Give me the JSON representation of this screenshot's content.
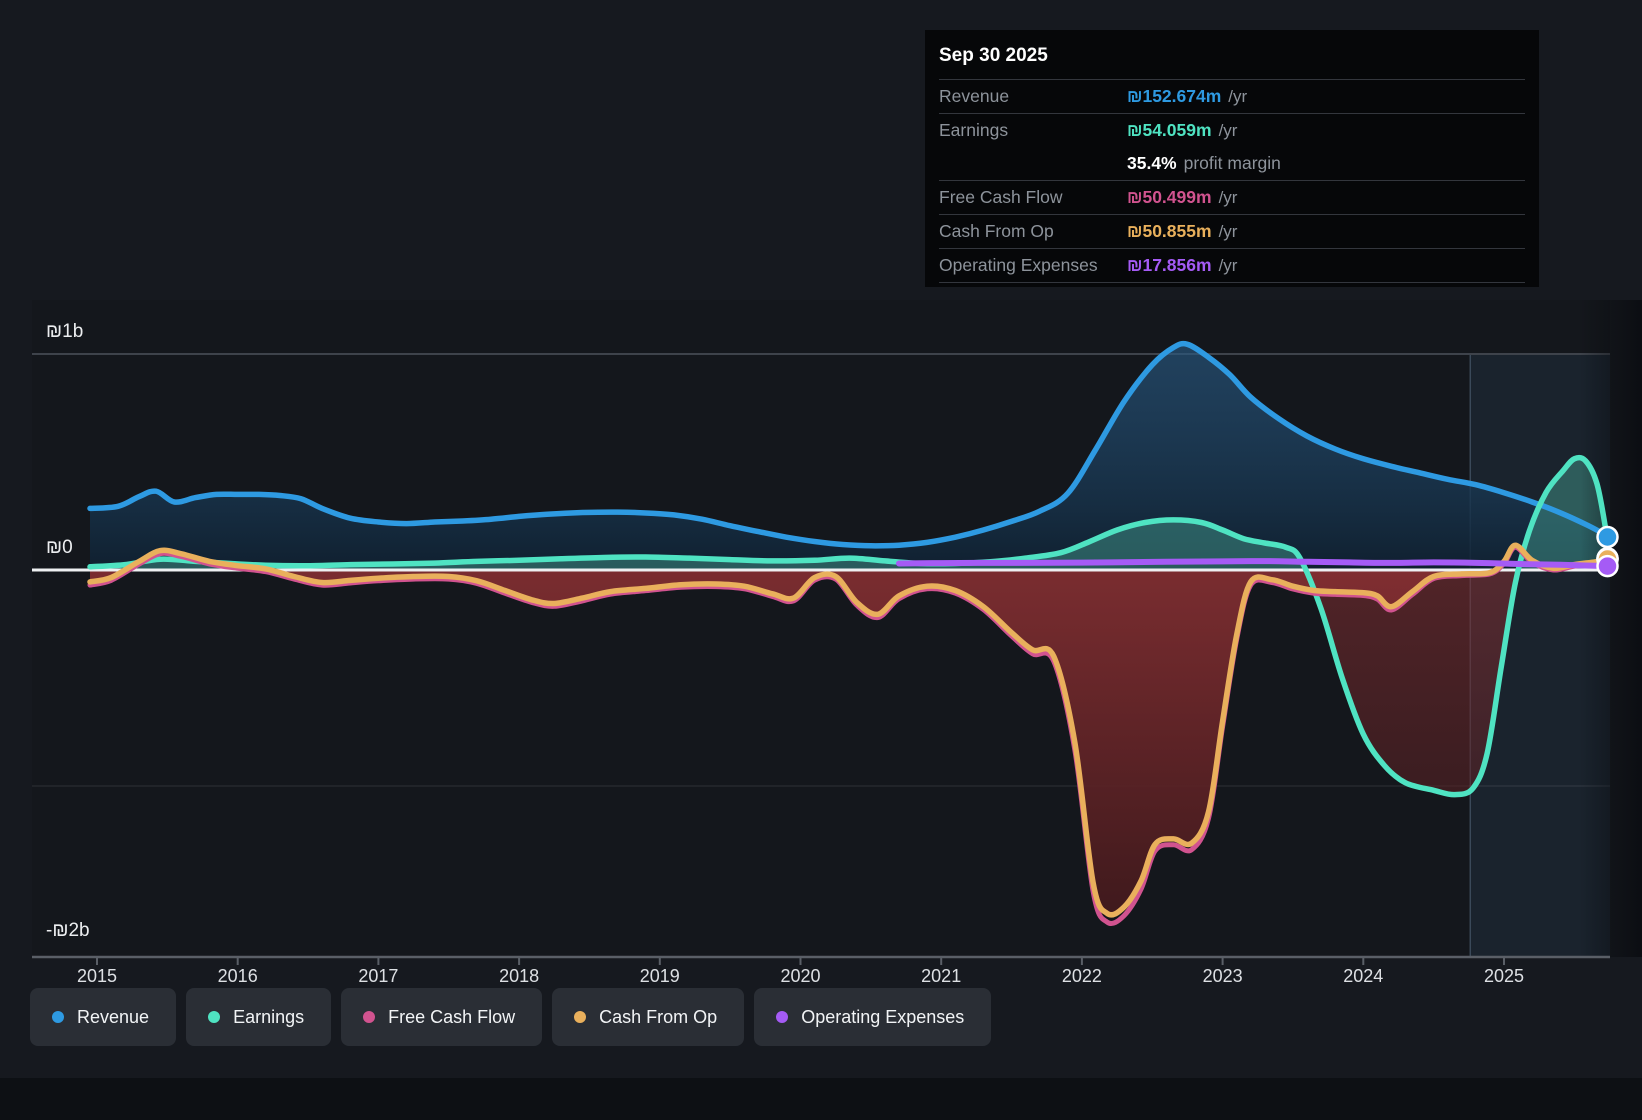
{
  "tooltip": {
    "date": "Sep 30 2025",
    "rows": [
      {
        "key": "revenue",
        "label": "Revenue",
        "value": "₪152.674m",
        "unit": "/yr",
        "color": "#2e9ae2"
      },
      {
        "key": "earnings",
        "label": "Earnings",
        "value": "₪54.059m",
        "unit": "/yr",
        "color": "#4fe3c2"
      },
      {
        "key": "free_cash_flow",
        "label": "Free Cash Flow",
        "value": "₪50.499m",
        "unit": "/yr",
        "color": "#d1538f"
      },
      {
        "key": "cash_from_op",
        "label": "Cash From Op",
        "value": "₪50.855m",
        "unit": "/yr",
        "color": "#e9b05c"
      },
      {
        "key": "operating_expenses",
        "label": "Operating Expenses",
        "value": "₪17.856m",
        "unit": "/yr",
        "color": "#a55bf5"
      }
    ],
    "margin": {
      "value": "35.4%",
      "label": "profit margin"
    }
  },
  "legend": {
    "items": [
      {
        "key": "revenue",
        "label": "Revenue",
        "color": "#2e9ae2"
      },
      {
        "key": "earnings",
        "label": "Earnings",
        "color": "#4fe3c2"
      },
      {
        "key": "free_cash_flow",
        "label": "Free Cash Flow",
        "color": "#d1538f"
      },
      {
        "key": "cash_from_op",
        "label": "Cash From Op",
        "color": "#e9b05c"
      },
      {
        "key": "operating_expenses",
        "label": "Operating Expenses",
        "color": "#a55bf5"
      }
    ]
  },
  "chart_data": {
    "type": "area",
    "currency": "₪",
    "value_unit": "millions ILS (TTM)",
    "xlim": [
      2014.95,
      2025.78
    ],
    "ylim": [
      -1790,
      1060
    ],
    "grid": true,
    "legend_position": "bottom",
    "x_ticks": [
      2015,
      2016,
      2017,
      2018,
      2019,
      2020,
      2021,
      2022,
      2023,
      2024,
      2025
    ],
    "x_tick_labels": [
      "2015",
      "2016",
      "2017",
      "2018",
      "2019",
      "2020",
      "2021",
      "2022",
      "2023",
      "2024",
      "2025"
    ],
    "y_axis_labels": [
      {
        "text": "₪1b",
        "value": 1000
      },
      {
        "text": "₪0",
        "value": 0
      },
      {
        "text": "-₪2b",
        "value": -2000
      }
    ],
    "highlight_band": {
      "start": 2024.76,
      "end": 2025.78
    },
    "series": [
      {
        "name": "Revenue",
        "key": "revenue",
        "color": "#2e9ae2",
        "x": [
          2014.95,
          2015.15,
          2015.3,
          2015.42,
          2015.55,
          2015.7,
          2015.85,
          2016.0,
          2016.15,
          2016.3,
          2016.45,
          2016.6,
          2016.8,
          2017.0,
          2017.2,
          2017.4,
          2017.6,
          2017.8,
          2018.0,
          2018.2,
          2018.45,
          2018.7,
          2018.9,
          2019.1,
          2019.3,
          2019.5,
          2019.7,
          2019.9,
          2020.1,
          2020.3,
          2020.5,
          2020.7,
          2020.9,
          2021.1,
          2021.3,
          2021.5,
          2021.7,
          2021.9,
          2022.1,
          2022.3,
          2022.5,
          2022.65,
          2022.75,
          2022.9,
          2023.05,
          2023.2,
          2023.4,
          2023.6,
          2023.8,
          2024.0,
          2024.2,
          2024.4,
          2024.6,
          2024.8,
          2025.0,
          2025.2,
          2025.4,
          2025.6,
          2025.75
        ],
        "values": [
          285,
          295,
          340,
          365,
          315,
          335,
          350,
          350,
          350,
          345,
          330,
          285,
          240,
          222,
          215,
          222,
          227,
          235,
          248,
          258,
          266,
          268,
          264,
          255,
          235,
          205,
          178,
          152,
          132,
          118,
          112,
          115,
          128,
          152,
          185,
          225,
          272,
          355,
          560,
          780,
          950,
          1030,
          1045,
          985,
          905,
          800,
          700,
          620,
          560,
          515,
          480,
          450,
          420,
          395,
          358,
          315,
          265,
          205,
          153
        ]
      },
      {
        "name": "Earnings",
        "key": "earnings",
        "color": "#4fe3c2",
        "x": [
          2014.95,
          2015.2,
          2015.45,
          2015.7,
          2015.95,
          2016.2,
          2016.5,
          2016.8,
          2017.1,
          2017.4,
          2017.7,
          2018.0,
          2018.3,
          2018.6,
          2018.9,
          2019.2,
          2019.5,
          2019.8,
          2020.1,
          2020.35,
          2020.6,
          2020.85,
          2021.1,
          2021.35,
          2021.6,
          2021.85,
          2022.05,
          2022.25,
          2022.45,
          2022.65,
          2022.85,
          2023.0,
          2023.15,
          2023.3,
          2023.45,
          2023.55,
          2023.7,
          2023.85,
          2024.0,
          2024.15,
          2024.3,
          2024.5,
          2024.65,
          2024.78,
          2024.88,
          2024.98,
          2025.08,
          2025.18,
          2025.3,
          2025.42,
          2025.5,
          2025.58,
          2025.66,
          2025.72,
          2025.75
        ],
        "values": [
          15,
          25,
          50,
          40,
          30,
          22,
          20,
          25,
          28,
          32,
          40,
          45,
          52,
          58,
          60,
          55,
          48,
          42,
          45,
          55,
          42,
          30,
          30,
          38,
          55,
          80,
          130,
          185,
          220,
          232,
          220,
          185,
          145,
          125,
          105,
          55,
          -180,
          -500,
          -760,
          -905,
          -985,
          -1020,
          -1040,
          -1010,
          -850,
          -450,
          -60,
          180,
          360,
          460,
          515,
          505,
          400,
          200,
          54
        ]
      },
      {
        "name": "Free Cash Flow",
        "key": "free_cash_flow",
        "color": "#d1538f",
        "x": [
          2014.95,
          2015.1,
          2015.3,
          2015.45,
          2015.6,
          2015.8,
          2016.0,
          2016.2,
          2016.4,
          2016.6,
          2016.8,
          2017.0,
          2017.25,
          2017.5,
          2017.7,
          2017.9,
          2018.1,
          2018.25,
          2018.45,
          2018.65,
          2018.9,
          2019.15,
          2019.4,
          2019.6,
          2019.8,
          2019.95,
          2020.1,
          2020.25,
          2020.4,
          2020.55,
          2020.7,
          2020.9,
          2021.1,
          2021.3,
          2021.5,
          2021.65,
          2021.8,
          2021.95,
          2022.08,
          2022.18,
          2022.3,
          2022.42,
          2022.52,
          2022.65,
          2022.78,
          2022.9,
          2023.0,
          2023.1,
          2023.2,
          2023.35,
          2023.5,
          2023.65,
          2023.8,
          2024.0,
          2024.1,
          2024.2,
          2024.35,
          2024.5,
          2024.7,
          2024.9,
          2025.0,
          2025.08,
          2025.2,
          2025.35,
          2025.5,
          2025.65,
          2025.75
        ],
        "values": [
          -70,
          -48,
          28,
          76,
          62,
          28,
          8,
          -8,
          -42,
          -70,
          -60,
          -50,
          -42,
          -42,
          -62,
          -108,
          -152,
          -168,
          -143,
          -112,
          -96,
          -80,
          -77,
          -87,
          -122,
          -143,
          -47,
          -42,
          -163,
          -220,
          -133,
          -87,
          -107,
          -183,
          -305,
          -388,
          -423,
          -835,
          -1490,
          -1630,
          -1600,
          -1478,
          -1300,
          -1272,
          -1295,
          -1150,
          -725,
          -320,
          -70,
          -58,
          -88,
          -108,
          -113,
          -118,
          -135,
          -185,
          -113,
          -40,
          -26,
          -18,
          30,
          105,
          36,
          0,
          18,
          30,
          50
        ]
      },
      {
        "name": "Cash From Op",
        "key": "cash_from_op",
        "color": "#e9b05c",
        "x": [
          2014.95,
          2015.1,
          2015.3,
          2015.45,
          2015.6,
          2015.8,
          2016.0,
          2016.2,
          2016.4,
          2016.6,
          2016.8,
          2017.0,
          2017.25,
          2017.5,
          2017.7,
          2017.9,
          2018.1,
          2018.25,
          2018.45,
          2018.65,
          2018.9,
          2019.15,
          2019.4,
          2019.6,
          2019.8,
          2019.95,
          2020.1,
          2020.25,
          2020.4,
          2020.55,
          2020.7,
          2020.9,
          2021.1,
          2021.3,
          2021.5,
          2021.65,
          2021.8,
          2021.95,
          2022.08,
          2022.18,
          2022.3,
          2022.42,
          2022.52,
          2022.65,
          2022.78,
          2022.9,
          2023.0,
          2023.1,
          2023.2,
          2023.35,
          2023.5,
          2023.65,
          2023.8,
          2024.0,
          2024.1,
          2024.2,
          2024.35,
          2024.5,
          2024.7,
          2024.9,
          2025.0,
          2025.08,
          2025.2,
          2025.35,
          2025.5,
          2025.65,
          2025.75
        ],
        "values": [
          -55,
          -35,
          40,
          90,
          75,
          40,
          20,
          5,
          -30,
          -58,
          -48,
          -38,
          -30,
          -30,
          -50,
          -95,
          -140,
          -155,
          -130,
          -100,
          -85,
          -68,
          -65,
          -75,
          -110,
          -130,
          -35,
          -30,
          -150,
          -205,
          -120,
          -75,
          -95,
          -170,
          -290,
          -370,
          -400,
          -800,
          -1450,
          -1590,
          -1560,
          -1440,
          -1270,
          -1245,
          -1265,
          -1120,
          -700,
          -300,
          -55,
          -45,
          -75,
          -95,
          -100,
          -105,
          -120,
          -170,
          -100,
          -30,
          -18,
          -12,
          40,
          115,
          45,
          8,
          25,
          38,
          51
        ]
      },
      {
        "name": "Operating Expenses",
        "key": "operating_expenses",
        "color": "#a55bf5",
        "x": [
          2020.7,
          2021.0,
          2021.4,
          2021.8,
          2022.2,
          2022.6,
          2023.0,
          2023.3,
          2023.6,
          2023.9,
          2024.2,
          2024.5,
          2024.8,
          2025.1,
          2025.4,
          2025.75
        ],
        "values": [
          30,
          32,
          33,
          34,
          35,
          38,
          40,
          41,
          38,
          35,
          33,
          35,
          33,
          28,
          24,
          18
        ]
      }
    ]
  }
}
